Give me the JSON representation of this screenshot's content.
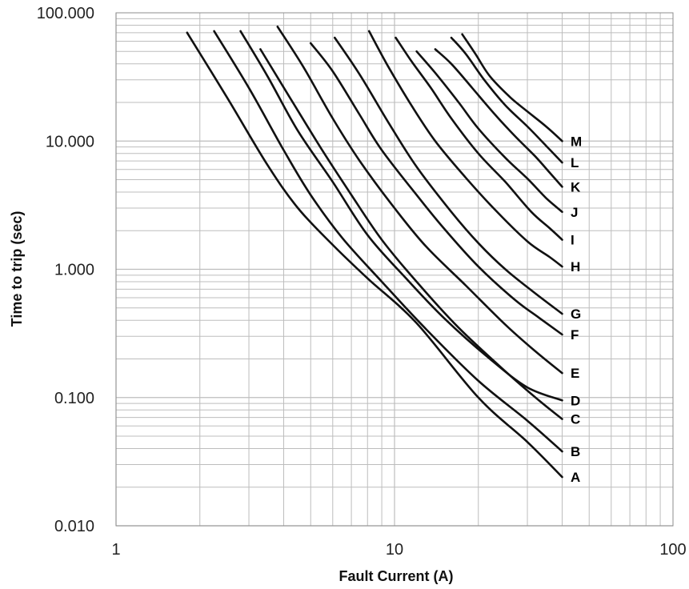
{
  "chart_data": {
    "type": "line",
    "title": "",
    "xlabel": "Fault Current (A)",
    "ylabel": "Time to trip (sec)",
    "x_scale": "log",
    "y_scale": "log",
    "xlim": [
      1,
      100
    ],
    "ylim": [
      0.01,
      100
    ],
    "x_ticks": [
      {
        "value": 1,
        "label": "1"
      },
      {
        "value": 10,
        "label": "10"
      },
      {
        "value": 100,
        "label": "100"
      }
    ],
    "y_ticks": [
      {
        "value": 100,
        "label": "100.000"
      },
      {
        "value": 10,
        "label": "10.000"
      },
      {
        "value": 1,
        "label": "1.000"
      },
      {
        "value": 0.1,
        "label": "0.100"
      },
      {
        "value": 0.01,
        "label": "0.010"
      }
    ],
    "grid": true,
    "line_color": "#111111",
    "grid_color": "#bdbdbd",
    "series": [
      {
        "name": "A",
        "x": [
          1.8,
          2.5,
          3.5,
          4.5,
          6,
          8,
          12,
          20,
          30,
          40
        ],
        "y": [
          70,
          22,
          6.5,
          3,
          1.55,
          0.85,
          0.38,
          0.1,
          0.045,
          0.024
        ]
      },
      {
        "name": "B",
        "x": [
          2.25,
          3,
          4,
          5,
          6.5,
          9,
          13,
          20,
          30,
          40
        ],
        "y": [
          72,
          26,
          8.5,
          3.8,
          1.75,
          0.8,
          0.34,
          0.135,
          0.066,
          0.038
        ]
      },
      {
        "name": "C",
        "x": [
          3.3,
          4.2,
          5.5,
          7,
          9,
          12,
          17,
          25,
          33,
          40
        ],
        "y": [
          52,
          22,
          8.5,
          3.8,
          1.7,
          0.8,
          0.35,
          0.16,
          0.095,
          0.068
        ]
      },
      {
        "name": "D",
        "x": [
          2.8,
          3.5,
          4.5,
          6,
          8,
          11,
          15,
          22,
          30,
          40
        ],
        "y": [
          72,
          32,
          12,
          4.8,
          1.85,
          0.85,
          0.42,
          0.2,
          0.12,
          0.095
        ]
      },
      {
        "name": "E",
        "x": [
          3.8,
          4.7,
          6,
          7.5,
          10,
          13,
          18,
          25,
          32,
          40
        ],
        "y": [
          78,
          38,
          15,
          7,
          3,
          1.5,
          0.75,
          0.37,
          0.23,
          0.155
        ]
      },
      {
        "name": "F",
        "x": [
          5,
          6,
          7.5,
          9,
          12,
          15,
          20,
          27,
          33,
          40
        ],
        "y": [
          58,
          35,
          16,
          8.5,
          3.8,
          2.1,
          1.05,
          0.58,
          0.42,
          0.31
        ]
      },
      {
        "name": "G",
        "x": [
          6.1,
          7.5,
          9.5,
          12,
          16,
          20,
          25,
          32,
          40
        ],
        "y": [
          64,
          33,
          14,
          6.3,
          2.8,
          1.6,
          1.0,
          0.65,
          0.45
        ]
      },
      {
        "name": "H",
        "x": [
          8.1,
          9.5,
          11.5,
          14,
          18,
          23,
          30,
          36,
          40
        ],
        "y": [
          72,
          38,
          19,
          10,
          5.2,
          2.9,
          1.65,
          1.25,
          1.05
        ]
      },
      {
        "name": "I",
        "x": [
          10.1,
          11.5,
          13.5,
          16,
          20,
          25,
          31,
          36,
          40
        ],
        "y": [
          64,
          42,
          26,
          15,
          8,
          4.8,
          2.8,
          2.1,
          1.7
        ]
      },
      {
        "name": "J",
        "x": [
          12,
          14,
          17,
          20,
          25,
          30,
          35,
          40
        ],
        "y": [
          50,
          34,
          20,
          12.5,
          7.4,
          5.1,
          3.6,
          2.8
        ]
      },
      {
        "name": "K",
        "x": [
          14,
          16,
          19,
          23,
          27,
          32,
          36,
          40
        ],
        "y": [
          52,
          40,
          26,
          16,
          11,
          7.6,
          5.7,
          4.4
        ]
      },
      {
        "name": "L",
        "x": [
          16,
          18,
          21,
          25,
          30,
          35,
          40
        ],
        "y": [
          64,
          48,
          30,
          19,
          13,
          9.2,
          6.8
        ]
      },
      {
        "name": "M",
        "x": [
          17.5,
          19.5,
          22,
          26,
          30,
          35,
          40
        ],
        "y": [
          68,
          48,
          32,
          22,
          17,
          13,
          10
        ]
      }
    ]
  }
}
